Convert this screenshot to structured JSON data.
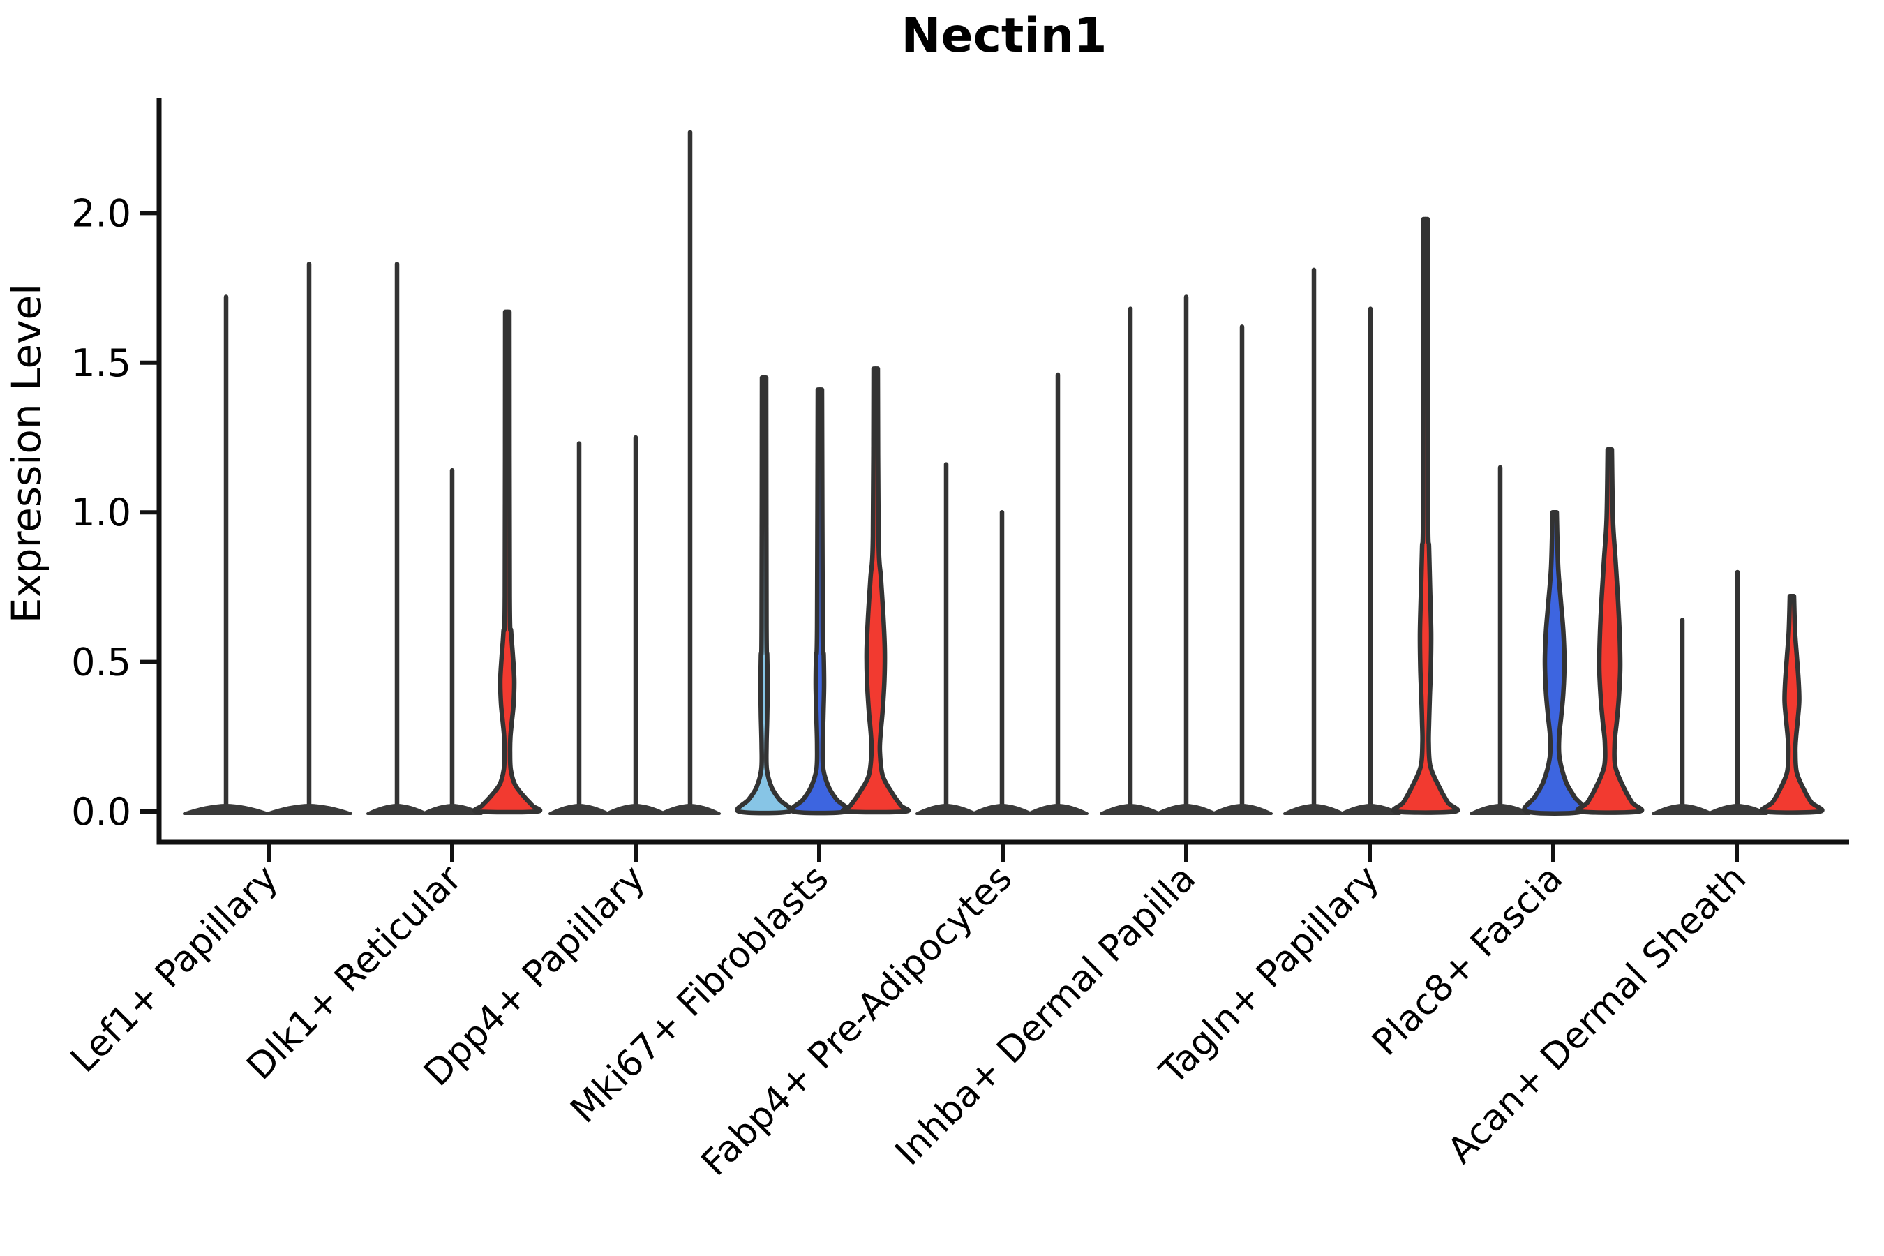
{
  "colors": {
    "red": "#f23a30",
    "blue": "#3d65e0",
    "lightblue": "#87c5e6",
    "edge": "#333333",
    "pancake": "#3a3a3a",
    "spine": "#111111",
    "text": "#000000"
  },
  "chart_data": {
    "type": "violin",
    "title": "Nectin1",
    "ylabel": "Expression Level",
    "xlabel": "",
    "grid": false,
    "legend": "none",
    "ylim": [
      -0.1,
      2.39
    ],
    "yticks": {
      "values": [
        0.0,
        0.5,
        1.0,
        1.5,
        2.0
      ],
      "labels": [
        "0.0",
        "0.5",
        "1.0",
        "1.5",
        "2.0"
      ]
    },
    "categories": [
      "Lef1+ Papillary",
      "Dlk1+ Reticular",
      "Dpp4+ Papillary",
      "Mki67+ Fibroblasts",
      "Fabp4+ Pre-Adipocytes",
      "Inhba+ Dermal Papilla",
      "Tagln+ Papillary",
      "Plac8+ Fascia",
      "Acan+ Dermal Sheath"
    ],
    "groups": [
      {
        "category": "Lef1+ Papillary",
        "violins": [
          {
            "offset": -61,
            "max": 1.72,
            "type": "line",
            "fill": null,
            "base": 60
          },
          {
            "offset": 58,
            "max": 1.83,
            "type": "line",
            "fill": null,
            "base": 60
          }
        ]
      },
      {
        "category": "Dlk1+ Reticular",
        "violins": [
          {
            "offset": -79,
            "max": 1.83,
            "type": "line",
            "fill": null,
            "base": 42
          },
          {
            "offset": 0,
            "max": 1.14,
            "type": "line",
            "fill": null,
            "base": 42
          },
          {
            "offset": 79,
            "max": 1.67,
            "type": "kde",
            "fill": "red",
            "base": 42,
            "profile": [
              [
                1.67,
                3
              ],
              [
                0.72,
                3.5
              ],
              [
                0.6,
                5.5
              ],
              [
                0.52,
                8
              ],
              [
                0.44,
                10
              ],
              [
                0.36,
                9
              ],
              [
                0.3,
                6.5
              ],
              [
                0.25,
                4.5
              ],
              [
                0.2,
                4
              ],
              [
                0.14,
                5
              ],
              [
                0.09,
                11
              ],
              [
                0.05,
                24
              ],
              [
                0.02,
                36
              ],
              [
                0,
                42
              ]
            ]
          }
        ]
      },
      {
        "category": "Dpp4+ Papillary",
        "violins": [
          {
            "offset": -81,
            "max": 1.23,
            "type": "line",
            "fill": null,
            "base": 42
          },
          {
            "offset": 0,
            "max": 1.25,
            "type": "line",
            "fill": null,
            "base": 42
          },
          {
            "offset": 78,
            "max": 2.27,
            "type": "line",
            "fill": null,
            "base": 42
          }
        ]
      },
      {
        "category": "Mki67+ Fibroblasts",
        "violins": [
          {
            "offset": -79,
            "max": 1.45,
            "type": "kde",
            "fill": "lightblue",
            "base": 36,
            "profile": [
              [
                1.45,
                3
              ],
              [
                0.62,
                3.5
              ],
              [
                0.52,
                4.5
              ],
              [
                0.42,
                5
              ],
              [
                0.32,
                4.5
              ],
              [
                0.22,
                3.5
              ],
              [
                0.14,
                4
              ],
              [
                0.08,
                11
              ],
              [
                0.04,
                22
              ],
              [
                0,
                36
              ]
            ]
          },
          {
            "offset": 1,
            "max": 1.41,
            "type": "kde",
            "fill": "blue",
            "base": 38,
            "profile": [
              [
                1.41,
                3
              ],
              [
                0.62,
                4
              ],
              [
                0.52,
                5.5
              ],
              [
                0.42,
                6
              ],
              [
                0.32,
                5
              ],
              [
                0.22,
                4
              ],
              [
                0.14,
                5
              ],
              [
                0.08,
                13
              ],
              [
                0.04,
                24
              ],
              [
                0,
                38
              ]
            ]
          },
          {
            "offset": 81,
            "max": 1.48,
            "type": "kde",
            "fill": "red",
            "base": 42,
            "profile": [
              [
                1.48,
                3
              ],
              [
                0.92,
                4
              ],
              [
                0.78,
                7.5
              ],
              [
                0.65,
                11
              ],
              [
                0.54,
                13
              ],
              [
                0.44,
                12.5
              ],
              [
                0.34,
                10
              ],
              [
                0.26,
                7
              ],
              [
                0.2,
                6
              ],
              [
                0.12,
                10
              ],
              [
                0.06,
                24
              ],
              [
                0.02,
                36
              ],
              [
                0,
                42
              ]
            ]
          }
        ]
      },
      {
        "category": "Fabp4+ Pre-Adipocytes",
        "violins": [
          {
            "offset": -81,
            "max": 1.16,
            "type": "line",
            "fill": null,
            "base": 42
          },
          {
            "offset": -1,
            "max": 1.0,
            "type": "line",
            "fill": null,
            "base": 42
          },
          {
            "offset": 79,
            "max": 1.46,
            "type": "line",
            "fill": null,
            "base": 42
          }
        ]
      },
      {
        "category": "Inhba+ Dermal Papilla",
        "violins": [
          {
            "offset": -80,
            "max": 1.68,
            "type": "line",
            "fill": null,
            "base": 42
          },
          {
            "offset": 0,
            "max": 1.72,
            "type": "line",
            "fill": null,
            "base": 42
          },
          {
            "offset": 80,
            "max": 1.62,
            "type": "line",
            "fill": null,
            "base": 42
          }
        ]
      },
      {
        "category": "Tagln+ Papillary",
        "violins": [
          {
            "offset": -80,
            "max": 1.81,
            "type": "line",
            "fill": null,
            "base": 42
          },
          {
            "offset": 1,
            "max": 1.68,
            "type": "line",
            "fill": null,
            "base": 42
          },
          {
            "offset": 80,
            "max": 1.98,
            "type": "kde",
            "fill": "red",
            "base": 42,
            "profile": [
              [
                1.98,
                3
              ],
              [
                1.02,
                3.5
              ],
              [
                0.88,
                5
              ],
              [
                0.74,
                6.5
              ],
              [
                0.6,
                8
              ],
              [
                0.48,
                7.5
              ],
              [
                0.38,
                6
              ],
              [
                0.3,
                5
              ],
              [
                0.23,
                4.5
              ],
              [
                0.15,
                7
              ],
              [
                0.08,
                20
              ],
              [
                0.03,
                32
              ],
              [
                0,
                42
              ]
            ]
          }
        ]
      },
      {
        "category": "Plac8+ Fascia",
        "violins": [
          {
            "offset": -76,
            "max": 1.15,
            "type": "line",
            "fill": null,
            "base": 42
          },
          {
            "offset": 2,
            "max": 1.0,
            "type": "kde",
            "fill": "blue",
            "base": 40,
            "profile": [
              [
                1.0,
                3
              ],
              [
                0.82,
                5
              ],
              [
                0.7,
                9
              ],
              [
                0.6,
                12.5
              ],
              [
                0.5,
                14
              ],
              [
                0.4,
                12.5
              ],
              [
                0.32,
                9.5
              ],
              [
                0.25,
                6.5
              ],
              [
                0.18,
                7
              ],
              [
                0.1,
                16
              ],
              [
                0.05,
                28
              ],
              [
                0,
                40
              ]
            ]
          },
          {
            "offset": 81,
            "max": 1.21,
            "type": "kde",
            "fill": "red",
            "base": 42,
            "profile": [
              [
                1.21,
                3
              ],
              [
                0.98,
                4.5
              ],
              [
                0.85,
                8
              ],
              [
                0.72,
                11.5
              ],
              [
                0.6,
                14
              ],
              [
                0.48,
                15
              ],
              [
                0.38,
                13
              ],
              [
                0.3,
                10
              ],
              [
                0.23,
                7
              ],
              [
                0.15,
                8
              ],
              [
                0.08,
                20
              ],
              [
                0.03,
                32
              ],
              [
                0,
                42
              ]
            ]
          }
        ]
      },
      {
        "category": "Acan+ Dermal Sheath",
        "violins": [
          {
            "offset": -78,
            "max": 0.64,
            "type": "line",
            "fill": null,
            "base": 42
          },
          {
            "offset": 1,
            "max": 0.8,
            "type": "line",
            "fill": null,
            "base": 42
          },
          {
            "offset": 79,
            "max": 0.72,
            "type": "kde",
            "fill": "red",
            "base": 40,
            "profile": [
              [
                0.72,
                3
              ],
              [
                0.6,
                4.5
              ],
              [
                0.52,
                7
              ],
              [
                0.44,
                9.5
              ],
              [
                0.37,
                10.5
              ],
              [
                0.31,
                8.5
              ],
              [
                0.25,
                6
              ],
              [
                0.2,
                5
              ],
              [
                0.13,
                7
              ],
              [
                0.07,
                18
              ],
              [
                0.03,
                28
              ],
              [
                0,
                40
              ]
            ]
          }
        ]
      }
    ]
  }
}
